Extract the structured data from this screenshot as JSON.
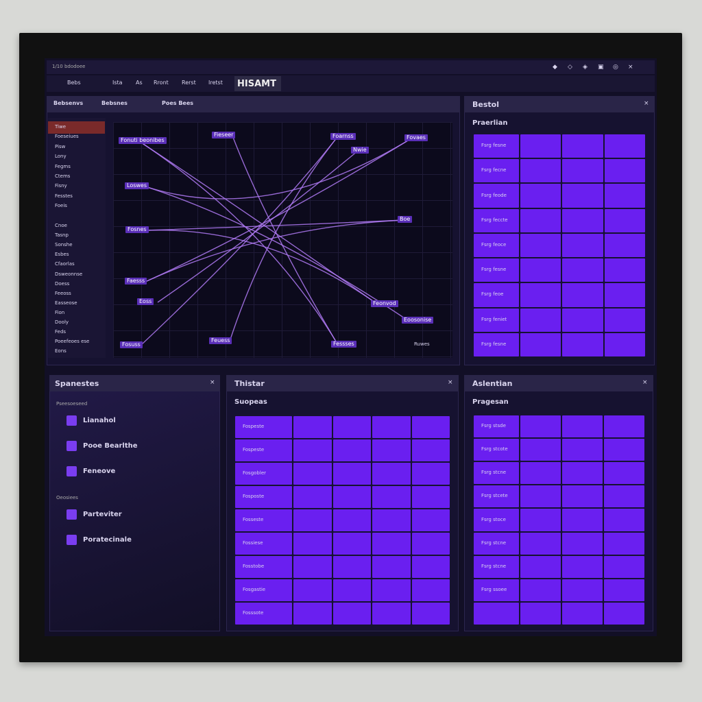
{
  "top_bar": {
    "status": "1/10 bdodoee",
    "menu": [
      "Bebs",
      "Ista",
      "As",
      "Rront",
      "Rerst",
      "Iretst"
    ],
    "title": "HISAMT"
  },
  "graph_panel": {
    "tabs": [
      "Bebsenvs",
      "Bebsnes",
      "Poes Bees"
    ],
    "sidebar": [
      [
        "Tiwe",
        "Foeseiues",
        "Pisw",
        "Lony",
        "Fegms",
        "Ctems",
        "Fisny",
        "Fesstes",
        "Foeis"
      ],
      [
        "Cnoe",
        "Tasnp",
        "Sonshe",
        "Esbes",
        "Cfaorlas",
        "Dsweonnse",
        "Doess",
        "Feeoss",
        "Easseose",
        "Fion",
        "Dooly",
        "Feds",
        "Poeefeoes ese",
        "Eons"
      ]
    ],
    "nodes": [
      "Fonuti beonibes",
      "Fieseer",
      "Loswes",
      "Fosnes",
      "Faesss",
      "Eoss",
      "Fosuss",
      "Feuess",
      "Fessses",
      "Feonvod",
      "Eoosonise",
      "Foarnss",
      "Nwie",
      "Fovaes",
      "Boe"
    ],
    "legend": "Ruwes"
  },
  "table_panel_1": {
    "title": "Bestol",
    "subtitle": "Praerlian",
    "rows": [
      "Fsrg fesne",
      "Fsrg fecne",
      "Fsrg feode",
      "Fsrg feccte",
      "Fsrg feoce",
      "Fsrg fesne",
      "Fsrg feoe",
      "Fsrg feniet",
      "Fsrg fesne"
    ]
  },
  "list_panel": {
    "title": "Spanestes",
    "groups": [
      {
        "heading": "Pseesoeseed",
        "items": [
          "Lianahol",
          "Pooe Bearlthe",
          "Feneove"
        ]
      },
      {
        "heading": "Oeosiees",
        "items": [
          "Parteviter",
          "Poratecinale"
        ]
      }
    ]
  },
  "table_panel_2": {
    "title": "Thistar",
    "subtitle": "Suopeas",
    "rows": [
      "Fospeste",
      "Fospeste",
      "Fosgobler",
      "Fosposte",
      "Fosseste",
      "Fossiese",
      "Fosstobe",
      "Fosgastie",
      "Fosssote"
    ]
  },
  "table_panel_3": {
    "title": "Aslentian",
    "subtitle": "Pragesan",
    "rows": [
      "Fsrg stsde",
      "Fsrg stcote",
      "Fsrg stcne",
      "Fsrg stcete",
      "Fsrg stoce",
      "Fsrg stcne",
      "Fsrg stcne",
      "Fsrg ssoee"
    ]
  }
}
